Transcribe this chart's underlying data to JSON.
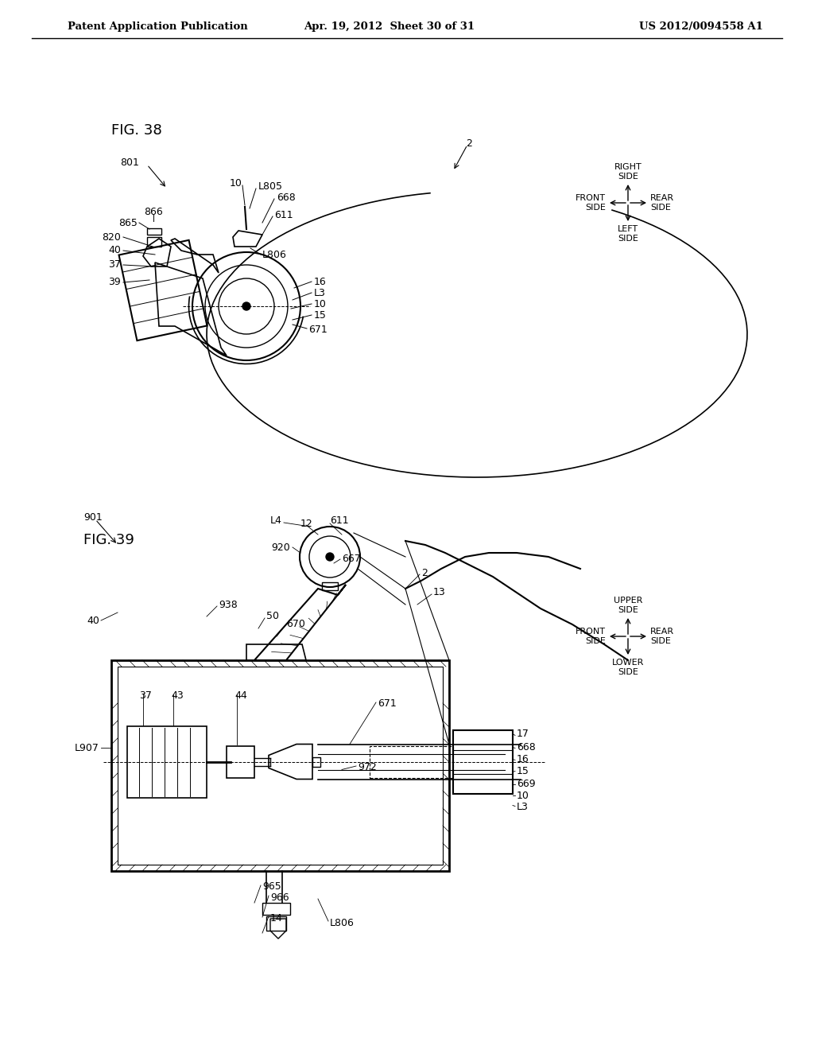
{
  "bg_color": "#ffffff",
  "line_color": "#000000",
  "header_left": "Patent Application Publication",
  "header_mid": "Apr. 19, 2012  Sheet 30 of 31",
  "header_right": "US 2012/0094558 A1",
  "fig38_label": "FIG. 38",
  "fig39_label": "FIG. 39"
}
